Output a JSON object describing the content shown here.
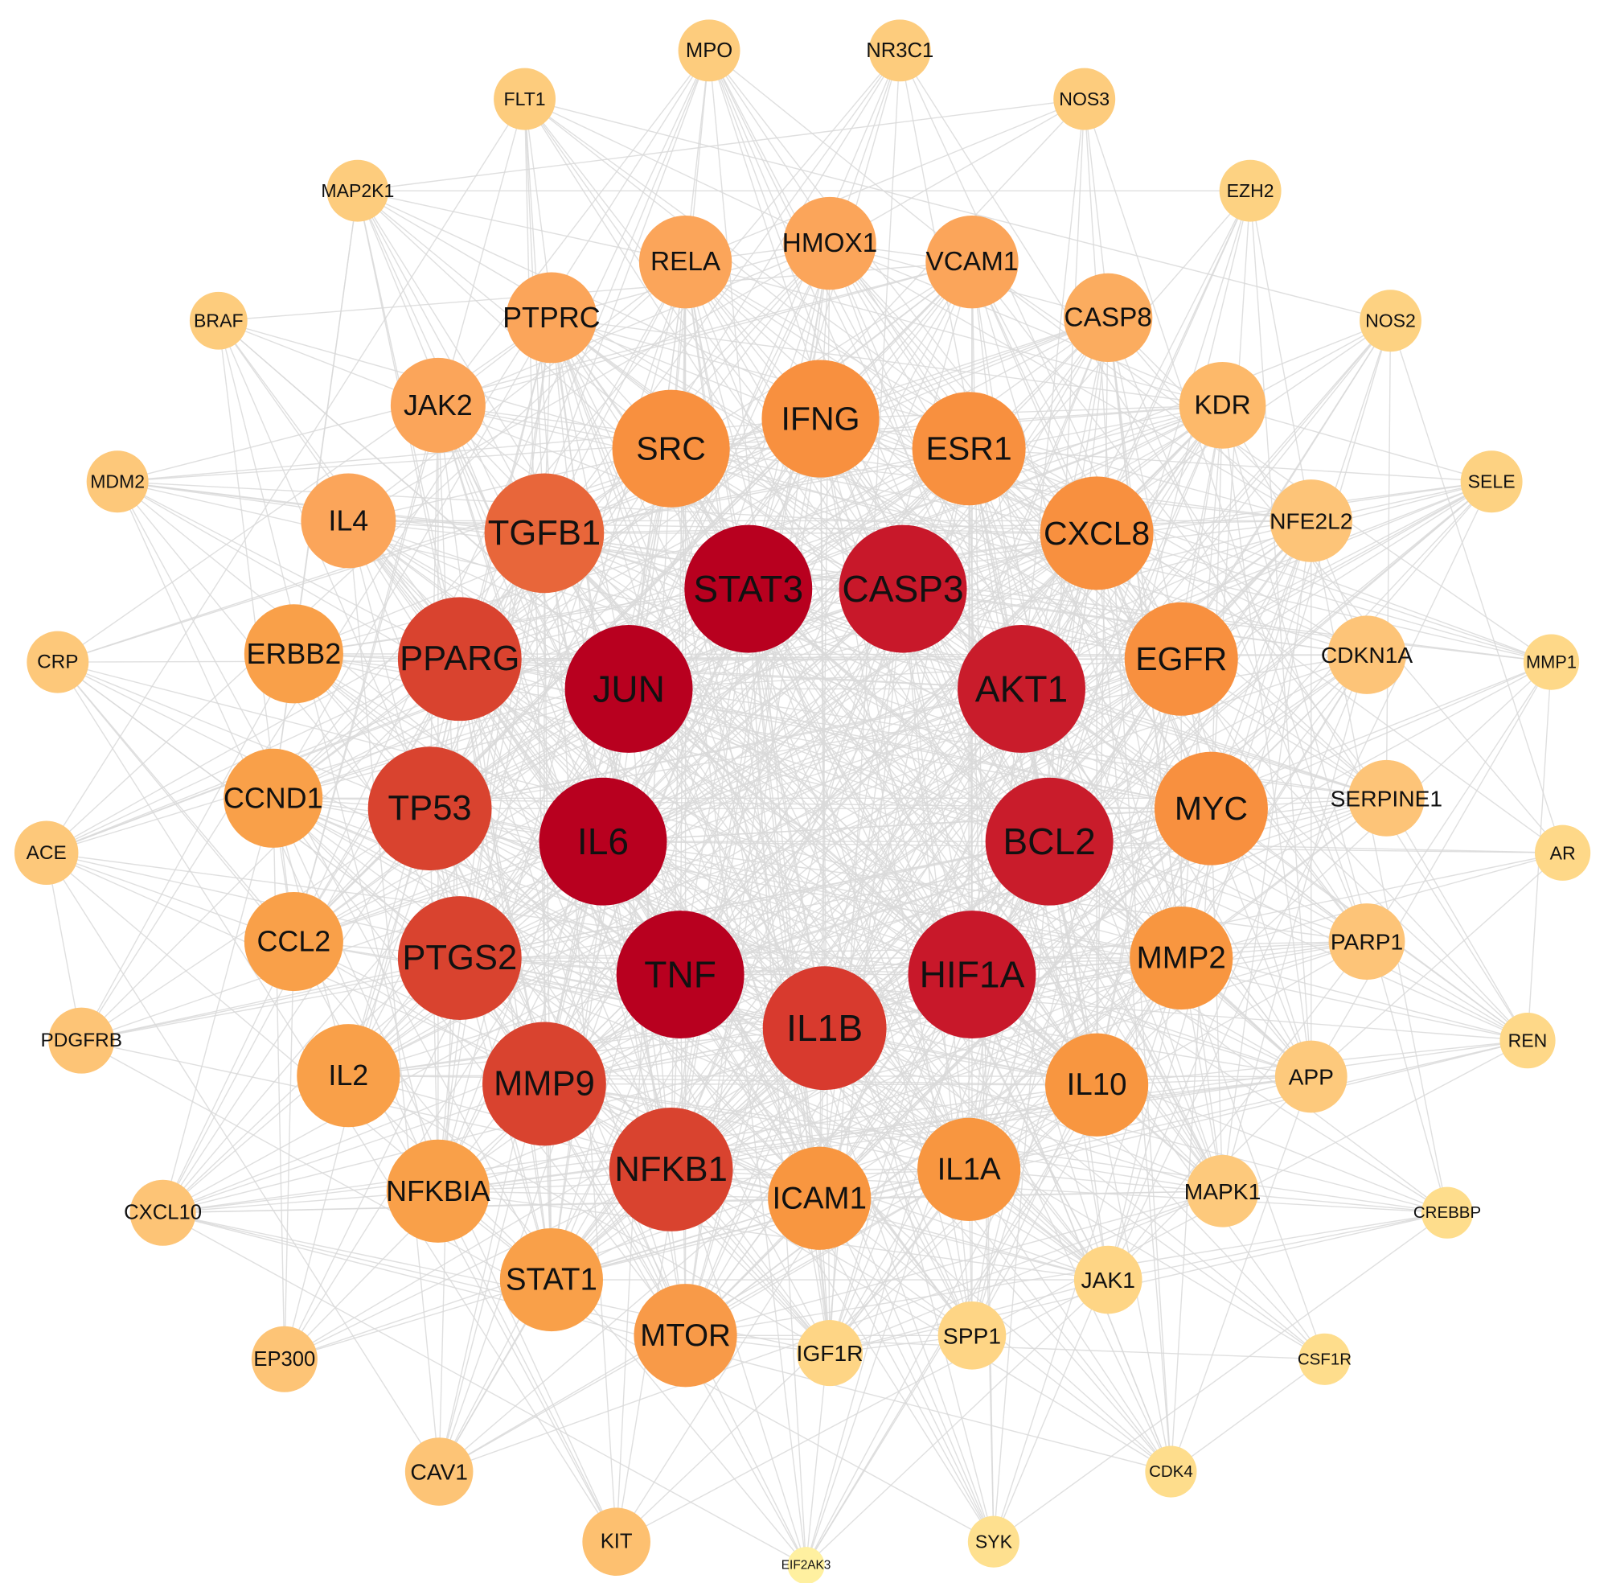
{
  "nodes": [
    {
      "label": "STAT3",
      "color": "#b8001f"
    },
    {
      "label": "CASP3",
      "color": "#c8182a"
    },
    {
      "label": "AKT1",
      "color": "#c91c2b"
    },
    {
      "label": "BCL2",
      "color": "#c91c2b"
    },
    {
      "label": "HIF1A",
      "color": "#c8182a"
    },
    {
      "label": "IL1B",
      "color": "#d83a2e"
    },
    {
      "label": "TNF",
      "color": "#b8001f"
    },
    {
      "label": "IL6",
      "color": "#b8001f"
    },
    {
      "label": "JUN",
      "color": "#b8001f"
    },
    {
      "label": "TGFB1",
      "color": "#e8663a"
    },
    {
      "label": "PPARG",
      "color": "#d9432f"
    },
    {
      "label": "TP53",
      "color": "#d9432f"
    },
    {
      "label": "PTGS2",
      "color": "#d9432f"
    },
    {
      "label": "MMP9",
      "color": "#d9432f"
    },
    {
      "label": "NFKB1",
      "color": "#d9432f"
    },
    {
      "label": "ICAM1",
      "color": "#f89640"
    },
    {
      "label": "IL1A",
      "color": "#f89640"
    },
    {
      "label": "IL10",
      "color": "#f89640"
    },
    {
      "label": "MMP2",
      "color": "#f89640"
    },
    {
      "label": "MYC",
      "color": "#f8903f"
    },
    {
      "label": "EGFR",
      "color": "#f8903f"
    },
    {
      "label": "CXCL8",
      "color": "#f8903f"
    },
    {
      "label": "ESR1",
      "color": "#f8903f"
    },
    {
      "label": "IFNG",
      "color": "#f8903f"
    },
    {
      "label": "SRC",
      "color": "#f8903f"
    },
    {
      "label": "RELA",
      "color": "#fba55a"
    },
    {
      "label": "HMOX1",
      "color": "#fba55a"
    },
    {
      "label": "VCAM1",
      "color": "#fba55a"
    },
    {
      "label": "CASP8",
      "color": "#fbac5f"
    },
    {
      "label": "KDR",
      "color": "#fdb96a"
    },
    {
      "label": "NFE2L2",
      "color": "#fdc478"
    },
    {
      "label": "CDKN1A",
      "color": "#fdc478"
    },
    {
      "label": "SERPINE1",
      "color": "#fdc478"
    },
    {
      "label": "PARP1",
      "color": "#fdc478"
    },
    {
      "label": "APP",
      "color": "#fdc97c"
    },
    {
      "label": "MAPK1",
      "color": "#fdc97c"
    },
    {
      "label": "JAK1",
      "color": "#fed585"
    },
    {
      "label": "SPP1",
      "color": "#fed585"
    },
    {
      "label": "IGF1R",
      "color": "#fed585"
    },
    {
      "label": "MTOR",
      "color": "#f89a48"
    },
    {
      "label": "STAT1",
      "color": "#f9a049"
    },
    {
      "label": "NFKBIA",
      "color": "#f9a049"
    },
    {
      "label": "IL2",
      "color": "#f9a049"
    },
    {
      "label": "CCL2",
      "color": "#f9a049"
    },
    {
      "label": "CCND1",
      "color": "#f9a049"
    },
    {
      "label": "ERBB2",
      "color": "#f9a049"
    },
    {
      "label": "IL4",
      "color": "#fba55a"
    },
    {
      "label": "JAK2",
      "color": "#fba55a"
    },
    {
      "label": "PTPRC",
      "color": "#fba55a"
    },
    {
      "label": "MPO",
      "color": "#fdcc7d"
    },
    {
      "label": "NR3C1",
      "color": "#fdcc7d"
    },
    {
      "label": "NOS3",
      "color": "#fdcc7d"
    },
    {
      "label": "EZH2",
      "color": "#fdd282"
    },
    {
      "label": "NOS2",
      "color": "#fdd282"
    },
    {
      "label": "SELE",
      "color": "#fdd282"
    },
    {
      "label": "MMP1",
      "color": "#fed888"
    },
    {
      "label": "AR",
      "color": "#fed888"
    },
    {
      "label": "REN",
      "color": "#fed888"
    },
    {
      "label": "CREBBP",
      "color": "#fedd8c"
    },
    {
      "label": "CSF1R",
      "color": "#fedd8c"
    },
    {
      "label": "CDK4",
      "color": "#fedd8c"
    },
    {
      "label": "SYK",
      "color": "#fee08f"
    },
    {
      "label": "EIF2AK3",
      "color": "#fff0a0"
    },
    {
      "label": "KIT",
      "color": "#fdc070"
    },
    {
      "label": "CAV1",
      "color": "#fdc476"
    },
    {
      "label": "EP300",
      "color": "#fdc476"
    },
    {
      "label": "CXCL10",
      "color": "#fdc476"
    },
    {
      "label": "PDGFRB",
      "color": "#fdc476"
    },
    {
      "label": "ACE",
      "color": "#fdc87a"
    },
    {
      "label": "CRP",
      "color": "#fdc87a"
    },
    {
      "label": "MDM2",
      "color": "#fdc87a"
    },
    {
      "label": "BRAF",
      "color": "#fdcc7d"
    },
    {
      "label": "MAP2K1",
      "color": "#fdcc7d"
    },
    {
      "label": "FLT1",
      "color": "#fdcc7d"
    }
  ]
}
